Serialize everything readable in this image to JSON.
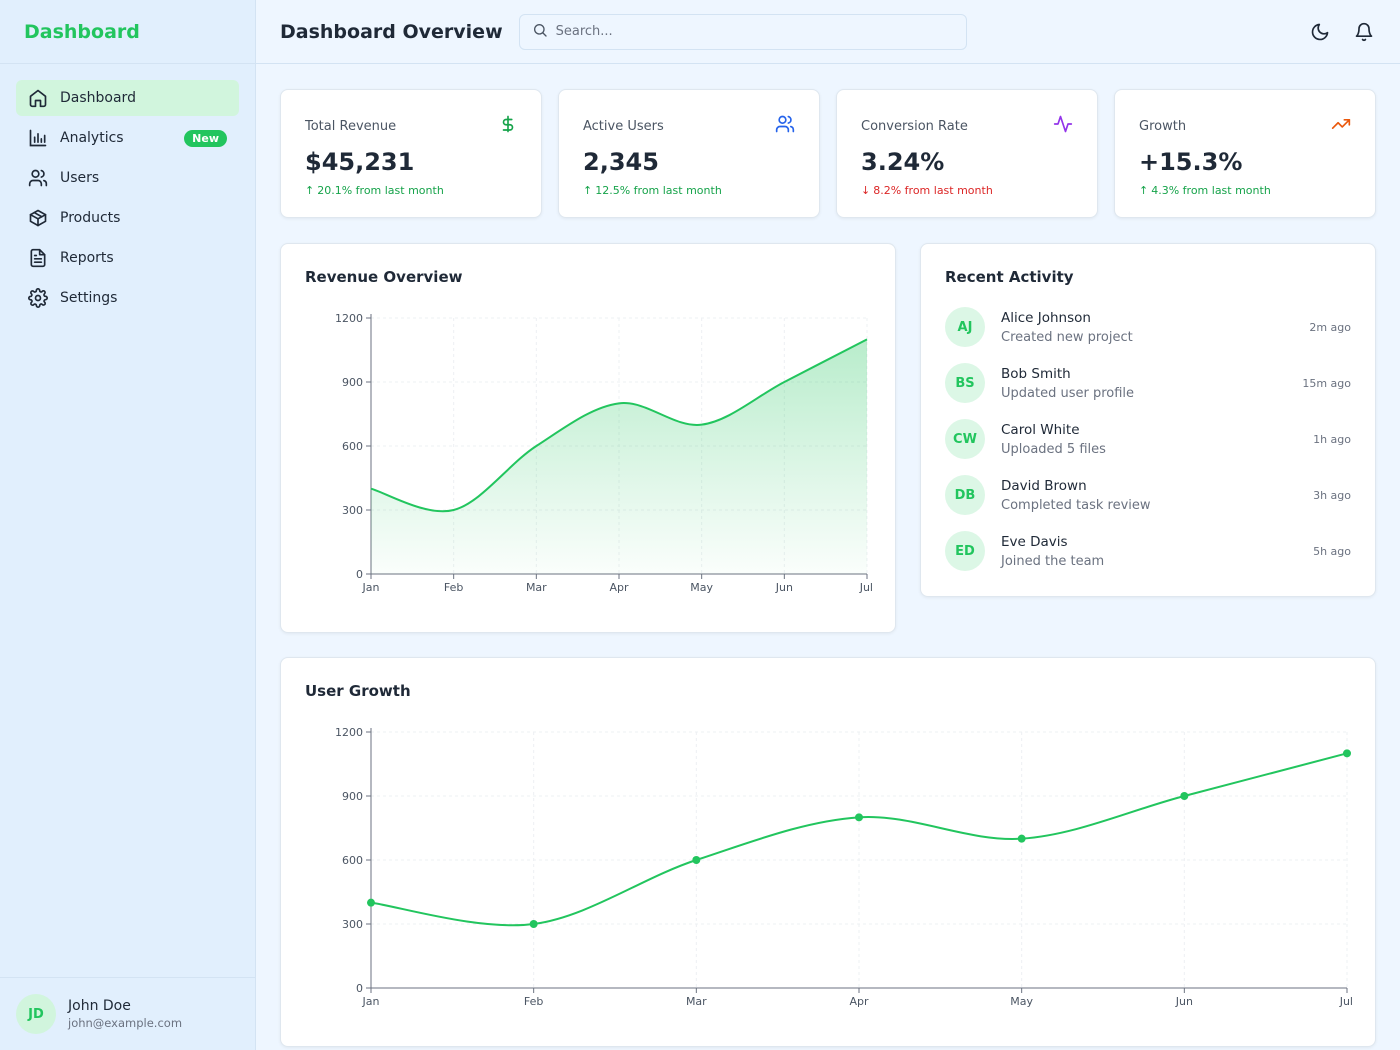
{
  "sidebar": {
    "brand": "Dashboard",
    "items": [
      {
        "label": "Dashboard",
        "icon": "home-icon",
        "active": true
      },
      {
        "label": "Analytics",
        "icon": "bar-chart-icon",
        "badge": "New"
      },
      {
        "label": "Users",
        "icon": "users-icon"
      },
      {
        "label": "Products",
        "icon": "box-icon"
      },
      {
        "label": "Reports",
        "icon": "file-text-icon"
      },
      {
        "label": "Settings",
        "icon": "gear-icon"
      }
    ],
    "user": {
      "initials": "JD",
      "name": "John Doe",
      "email": "john@example.com"
    }
  },
  "header": {
    "title": "Dashboard Overview",
    "search_placeholder": "Search...",
    "actions": [
      "moon-icon",
      "bell-icon"
    ]
  },
  "stats": [
    {
      "title": "Total Revenue",
      "value": "$45,231",
      "change": "20.1% from last month",
      "direction": "up",
      "icon": "dollar-icon",
      "color": "#16a34a"
    },
    {
      "title": "Active Users",
      "value": "2,345",
      "change": "12.5% from last month",
      "direction": "up",
      "icon": "users-icon",
      "color": "#2563eb"
    },
    {
      "title": "Conversion Rate",
      "value": "3.24%",
      "change": "8.2% from last month",
      "direction": "down",
      "icon": "activity-icon",
      "color": "#9333ea"
    },
    {
      "title": "Growth",
      "value": "+15.3%",
      "change": "4.3% from last month",
      "direction": "up",
      "icon": "trending-up-icon",
      "color": "#ea580c"
    }
  ],
  "revenue_card": {
    "title": "Revenue Overview"
  },
  "growth_card": {
    "title": "User Growth"
  },
  "activity": {
    "title": "Recent Activity",
    "items": [
      {
        "initials": "AJ",
        "name": "Alice Johnson",
        "desc": "Created new project",
        "time": "2m ago"
      },
      {
        "initials": "BS",
        "name": "Bob Smith",
        "desc": "Updated user profile",
        "time": "15m ago"
      },
      {
        "initials": "CW",
        "name": "Carol White",
        "desc": "Uploaded 5 files",
        "time": "1h ago"
      },
      {
        "initials": "DB",
        "name": "David Brown",
        "desc": "Completed task review",
        "time": "3h ago"
      },
      {
        "initials": "ED",
        "name": "Eve Davis",
        "desc": "Joined the team",
        "time": "5h ago"
      }
    ]
  },
  "colors": {
    "accent": "#22c55e",
    "up": "#16a34a",
    "down": "#dc2626"
  },
  "chart_data": [
    {
      "type": "area",
      "title": "Revenue Overview",
      "categories": [
        "Jan",
        "Feb",
        "Mar",
        "Apr",
        "May",
        "Jun",
        "Jul"
      ],
      "values": [
        400,
        300,
        600,
        800,
        700,
        900,
        1100
      ],
      "yticks": [
        0,
        300,
        600,
        900,
        1200
      ],
      "ylim": [
        0,
        1200
      ],
      "grid": true
    },
    {
      "type": "line",
      "title": "User Growth",
      "categories": [
        "Jan",
        "Feb",
        "Mar",
        "Apr",
        "May",
        "Jun",
        "Jul"
      ],
      "values": [
        400,
        300,
        600,
        800,
        700,
        900,
        1100
      ],
      "yticks": [
        0,
        300,
        600,
        900,
        1200
      ],
      "ylim": [
        0,
        1200
      ],
      "grid": true
    }
  ]
}
